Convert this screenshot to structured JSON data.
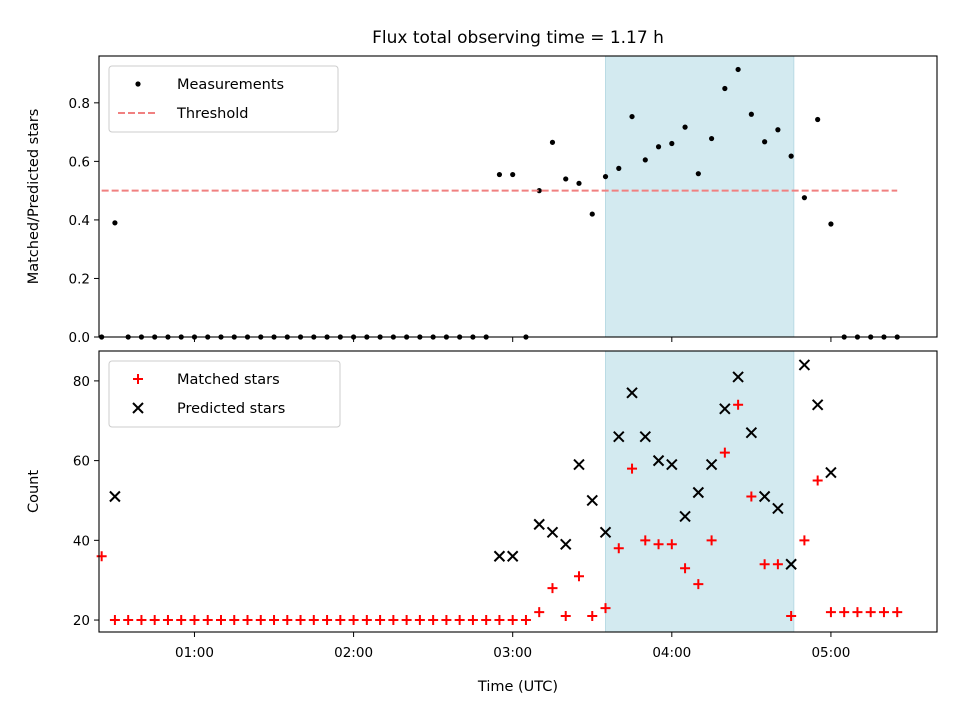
{
  "chart_data": [
    {
      "type": "scatter",
      "title": "Flux total observing time = 1.17 h",
      "ylabel": "Matched/Predicted stars",
      "xlabel": "",
      "xlim": [
        "00:24",
        "05:40"
      ],
      "ylim": [
        0.0,
        0.96
      ],
      "x_ticks": [
        "01:00",
        "02:00",
        "03:00",
        "04:00",
        "05:00"
      ],
      "x_tick_labels_shown": false,
      "y_ticks": [
        "0.0",
        "0.2",
        "0.4",
        "0.6",
        "0.8"
      ],
      "legend_position": "upper-left",
      "highlight_span": {
        "from": "03:35",
        "to": "04:46",
        "color": "#d3eaf0"
      },
      "series": [
        {
          "name": "Measurements",
          "kind": "dot",
          "color": "#000000",
          "points": [
            [
              "00:25",
              0.0
            ],
            [
              "00:30",
              0.39
            ],
            [
              "00:35",
              0.0
            ],
            [
              "00:40",
              0.0
            ],
            [
              "00:45",
              0.0
            ],
            [
              "00:50",
              0.0
            ],
            [
              "00:55",
              0.0
            ],
            [
              "01:00",
              0.0
            ],
            [
              "01:05",
              0.0
            ],
            [
              "01:10",
              0.0
            ],
            [
              "01:15",
              0.0
            ],
            [
              "01:20",
              0.0
            ],
            [
              "01:25",
              0.0
            ],
            [
              "01:30",
              0.0
            ],
            [
              "01:35",
              0.0
            ],
            [
              "01:40",
              0.0
            ],
            [
              "01:45",
              0.0
            ],
            [
              "01:50",
              0.0
            ],
            [
              "01:55",
              0.0
            ],
            [
              "02:00",
              0.0
            ],
            [
              "02:05",
              0.0
            ],
            [
              "02:10",
              0.0
            ],
            [
              "02:15",
              0.0
            ],
            [
              "02:20",
              0.0
            ],
            [
              "02:25",
              0.0
            ],
            [
              "02:30",
              0.0
            ],
            [
              "02:35",
              0.0
            ],
            [
              "02:40",
              0.0
            ],
            [
              "02:45",
              0.0
            ],
            [
              "02:50",
              0.0
            ],
            [
              "02:55",
              0.555
            ],
            [
              "03:00",
              0.555
            ],
            [
              "03:05",
              0.0
            ],
            [
              "03:10",
              0.5
            ],
            [
              "03:15",
              0.665
            ],
            [
              "03:20",
              0.54
            ],
            [
              "03:25",
              0.525
            ],
            [
              "03:30",
              0.42
            ],
            [
              "03:35",
              0.548
            ],
            [
              "03:40",
              0.576
            ],
            [
              "03:45",
              0.753
            ],
            [
              "03:50",
              0.605
            ],
            [
              "03:55",
              0.65
            ],
            [
              "04:00",
              0.661
            ],
            [
              "04:05",
              0.717
            ],
            [
              "04:10",
              0.558
            ],
            [
              "04:15",
              0.678
            ],
            [
              "04:20",
              0.849
            ],
            [
              "04:25",
              0.914
            ],
            [
              "04:30",
              0.761
            ],
            [
              "04:35",
              0.667
            ],
            [
              "04:40",
              0.708
            ],
            [
              "04:45",
              0.618
            ],
            [
              "04:50",
              0.476
            ],
            [
              "04:55",
              0.743
            ],
            [
              "05:00",
              0.386
            ],
            [
              "05:05",
              0.0
            ],
            [
              "05:10",
              0.0
            ],
            [
              "05:15",
              0.0
            ],
            [
              "05:20",
              0.0
            ],
            [
              "05:25",
              0.0
            ]
          ]
        },
        {
          "name": "Threshold",
          "kind": "dashed-line",
          "color": "#f08080",
          "points": [
            [
              "00:25",
              0.5
            ],
            [
              "05:25",
              0.5
            ]
          ]
        }
      ]
    },
    {
      "type": "scatter",
      "title": "",
      "ylabel": "Count",
      "xlabel": "Time (UTC)",
      "xlim": [
        "00:24",
        "05:40"
      ],
      "ylim": [
        17,
        87.5
      ],
      "x_ticks": [
        "01:00",
        "02:00",
        "03:00",
        "04:00",
        "05:00"
      ],
      "x_tick_labels_shown": true,
      "y_ticks": [
        "20",
        "40",
        "60",
        "80"
      ],
      "legend_position": "upper-left",
      "highlight_span": {
        "from": "03:35",
        "to": "04:46",
        "color": "#d3eaf0"
      },
      "series": [
        {
          "name": "Matched stars",
          "kind": "plus",
          "color": "#ff0000",
          "points": [
            [
              "00:25",
              36
            ],
            [
              "00:30",
              20
            ],
            [
              "00:35",
              20
            ],
            [
              "00:40",
              20
            ],
            [
              "00:45",
              20
            ],
            [
              "00:50",
              20
            ],
            [
              "00:55",
              20
            ],
            [
              "01:00",
              20
            ],
            [
              "01:05",
              20
            ],
            [
              "01:10",
              20
            ],
            [
              "01:15",
              20
            ],
            [
              "01:20",
              20
            ],
            [
              "01:25",
              20
            ],
            [
              "01:30",
              20
            ],
            [
              "01:35",
              20
            ],
            [
              "01:40",
              20
            ],
            [
              "01:45",
              20
            ],
            [
              "01:50",
              20
            ],
            [
              "01:55",
              20
            ],
            [
              "02:00",
              20
            ],
            [
              "02:05",
              20
            ],
            [
              "02:10",
              20
            ],
            [
              "02:15",
              20
            ],
            [
              "02:20",
              20
            ],
            [
              "02:25",
              20
            ],
            [
              "02:30",
              20
            ],
            [
              "02:35",
              20
            ],
            [
              "02:40",
              20
            ],
            [
              "02:45",
              20
            ],
            [
              "02:50",
              20
            ],
            [
              "02:55",
              20
            ],
            [
              "03:00",
              20
            ],
            [
              "03:05",
              20
            ],
            [
              "03:10",
              22
            ],
            [
              "03:15",
              28
            ],
            [
              "03:20",
              21
            ],
            [
              "03:25",
              31
            ],
            [
              "03:30",
              21
            ],
            [
              "03:35",
              23
            ],
            [
              "03:40",
              38
            ],
            [
              "03:45",
              58
            ],
            [
              "03:50",
              40
            ],
            [
              "03:55",
              39
            ],
            [
              "04:00",
              39
            ],
            [
              "04:05",
              33
            ],
            [
              "04:10",
              29
            ],
            [
              "04:15",
              40
            ],
            [
              "04:20",
              62
            ],
            [
              "04:25",
              74
            ],
            [
              "04:30",
              51
            ],
            [
              "04:35",
              34
            ],
            [
              "04:40",
              34
            ],
            [
              "04:45",
              21
            ],
            [
              "04:50",
              40
            ],
            [
              "04:55",
              55
            ],
            [
              "05:00",
              22
            ],
            [
              "05:05",
              22
            ],
            [
              "05:10",
              22
            ],
            [
              "05:15",
              22
            ],
            [
              "05:20",
              22
            ],
            [
              "05:25",
              22
            ]
          ]
        },
        {
          "name": "Predicted stars",
          "kind": "cross",
          "color": "#000000",
          "points": [
            [
              "00:30",
              51
            ],
            [
              "02:55",
              36
            ],
            [
              "03:00",
              36
            ],
            [
              "03:10",
              44
            ],
            [
              "03:15",
              42
            ],
            [
              "03:20",
              39
            ],
            [
              "03:25",
              59
            ],
            [
              "03:30",
              50
            ],
            [
              "03:35",
              42
            ],
            [
              "03:40",
              66
            ],
            [
              "03:45",
              77
            ],
            [
              "03:50",
              66
            ],
            [
              "03:55",
              60
            ],
            [
              "04:00",
              59
            ],
            [
              "04:05",
              46
            ],
            [
              "04:10",
              52
            ],
            [
              "04:15",
              59
            ],
            [
              "04:20",
              73
            ],
            [
              "04:25",
              81
            ],
            [
              "04:30",
              67
            ],
            [
              "04:35",
              51
            ],
            [
              "04:40",
              48
            ],
            [
              "04:45",
              34
            ],
            [
              "04:50",
              84
            ],
            [
              "04:55",
              74
            ],
            [
              "05:00",
              57
            ]
          ]
        }
      ]
    }
  ]
}
